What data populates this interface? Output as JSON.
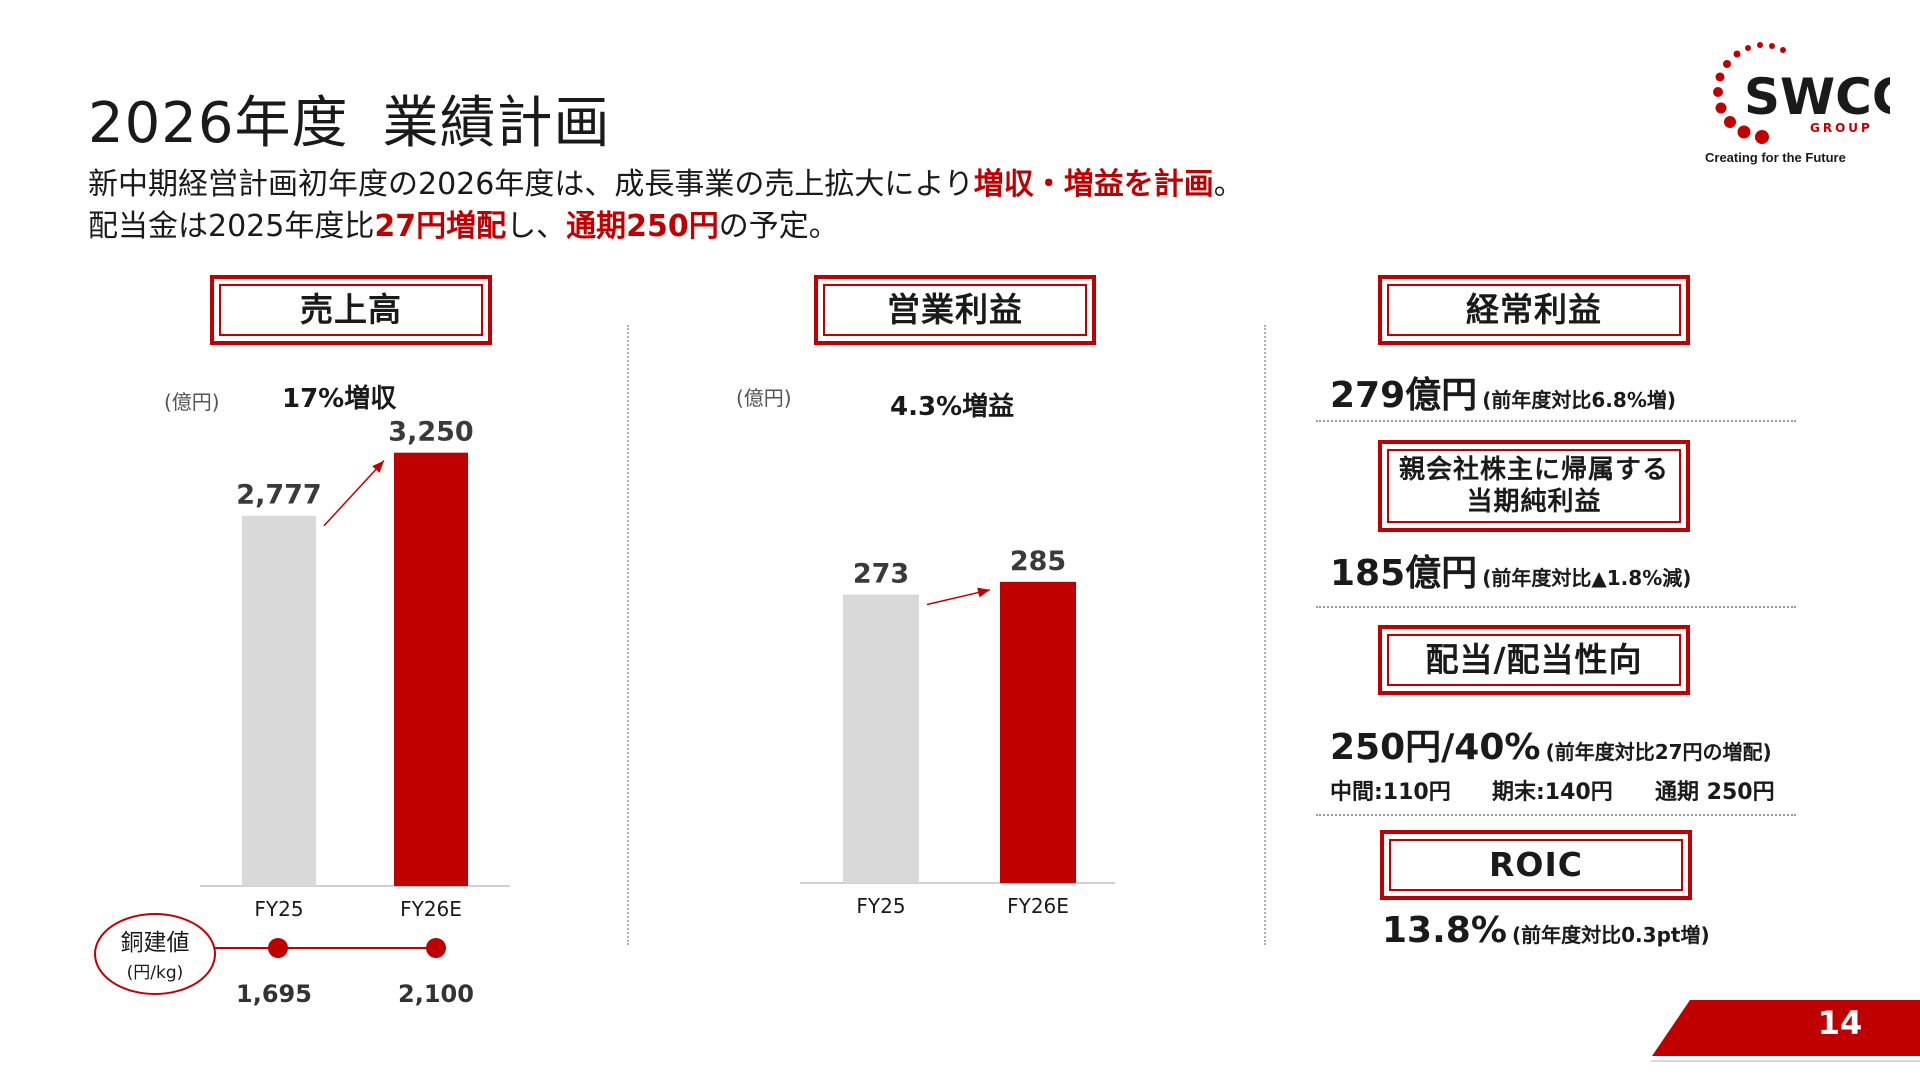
{
  "title": {
    "year": "2026年度",
    "main": "業績計画"
  },
  "lead": {
    "line1_a": "新中期経営計画初年度の2026年度は、成長事業の売上拡大により",
    "line1_b": "増収・増益を計画",
    "line1_c": "。",
    "line2_a": "配当金は2025年度比",
    "line2_b": "27円増配",
    "line2_c": "し、",
    "line2_d": "通期250円",
    "line2_e": "の予定。"
  },
  "logo": {
    "name": "SWCC",
    "group": "GROUP",
    "tagline": "Creating  for the Future",
    "icon": "swcc-dots-logo"
  },
  "sales": {
    "header": "売上高",
    "unit": "(億円)",
    "growth": "17%増収",
    "copper": {
      "label": "銅建値",
      "unit": "(円/kg)",
      "values": [
        "1,695",
        "2,100"
      ]
    }
  },
  "op": {
    "header": "営業利益",
    "unit": "(億円)",
    "growth": "4.3%増益"
  },
  "right": {
    "ordinary": {
      "header": "経常利益",
      "value": "279億円",
      "note": "(前年度対比6.8%増)"
    },
    "net": {
      "header_line1": "親会社株主に帰属する",
      "header_line2": "当期純利益",
      "value": "185億円",
      "note": "(前年度対比▲1.8%減)"
    },
    "dividend": {
      "header": "配当/配当性向",
      "value": "250円/40%",
      "note": "(前年度対比27円の増配)",
      "interim": "中間:110円",
      "year_end": "期末:140円",
      "full": "通期 250円"
    },
    "roic": {
      "header": "ROIC",
      "value": "13.8%",
      "note": "(前年度対比0.3pt増)"
    }
  },
  "page": {
    "number": "14"
  },
  "colors": {
    "accent": "#c00000",
    "bar_prev": "#d9d9d9",
    "bar_plan": "#c00000"
  },
  "chart_data": [
    {
      "type": "bar",
      "categories": [
        "FY25",
        "FY26E"
      ],
      "values": [
        2777,
        3250
      ],
      "value_labels": [
        "2,777",
        "3,250"
      ],
      "title": "売上高",
      "ylabel": "(億円)",
      "ylim": [
        0,
        3450
      ]
    },
    {
      "type": "bar",
      "categories": [
        "FY25",
        "FY26E"
      ],
      "values": [
        273,
        285
      ],
      "value_labels": [
        "273",
        "285"
      ],
      "title": "営業利益",
      "ylabel": "(億円)",
      "ylim": [
        0,
        370
      ]
    }
  ]
}
